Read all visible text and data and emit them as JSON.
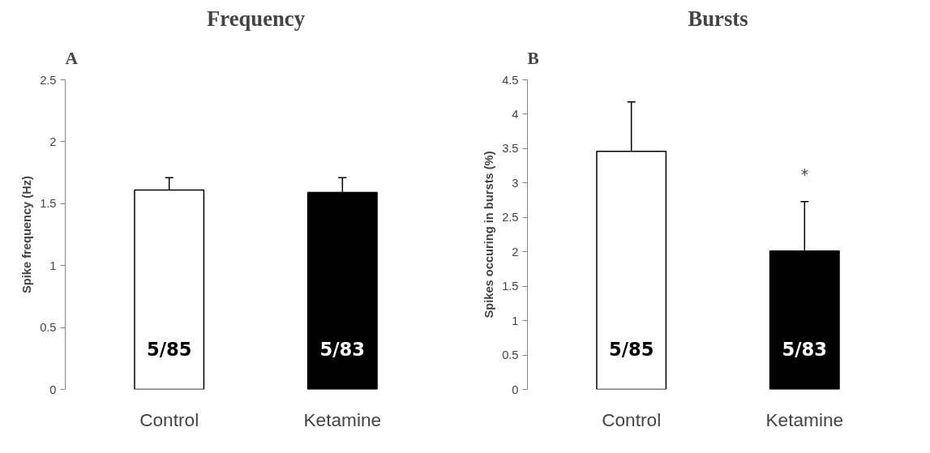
{
  "chart_data": [
    {
      "type": "bar",
      "title": "Frequency",
      "ylabel": "Spike frequency (Hz)",
      "categories": [
        "Control",
        "Ketamine"
      ],
      "values": [
        1.61,
        1.59
      ],
      "errors": [
        0.1,
        0.12
      ],
      "colors": [
        "#ffffff",
        "#000000"
      ],
      "ylim": [
        0,
        2.5
      ],
      "yticks": [
        0,
        0.5,
        1,
        1.5,
        2,
        2.5
      ],
      "grid": false,
      "annotations": [
        "A",
        "5/85",
        "5/83"
      ]
    },
    {
      "type": "bar",
      "title": "Bursts",
      "ylabel": "Spikes occuring in bursts (%)",
      "categories": [
        "Control",
        "Ketamine"
      ],
      "values": [
        3.46,
        2.01
      ],
      "errors": [
        0.72,
        0.72
      ],
      "colors": [
        "#ffffff",
        "#000000"
      ],
      "ylim": [
        0,
        4.5
      ],
      "yticks": [
        0,
        0.5,
        1,
        1.5,
        2,
        2.5,
        3,
        3.5,
        4,
        4.5
      ],
      "grid": false,
      "annotations": [
        "B",
        "5/85",
        "5/83",
        "*"
      ]
    }
  ]
}
